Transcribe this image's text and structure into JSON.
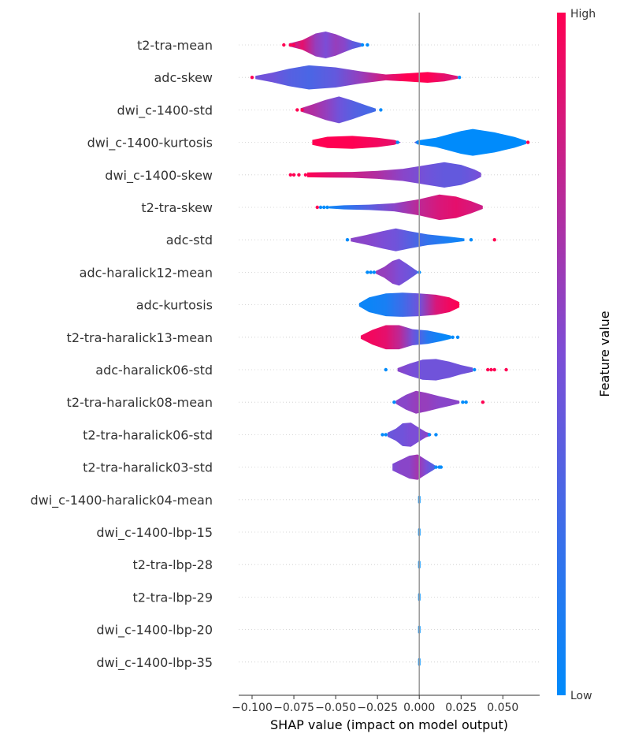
{
  "chart_data": {
    "type": "violin",
    "xlabel": "SHAP value (impact on model output)",
    "xlim": [
      -0.108,
      0.072
    ],
    "xticks": [
      -0.1,
      -0.075,
      -0.05,
      -0.025,
      0.0,
      0.025,
      0.05
    ],
    "xtick_labels": [
      "−0.100",
      "−0.075",
      "−0.050",
      "−0.025",
      "0.000",
      "0.025",
      "0.050"
    ],
    "colorbar": {
      "title": "Feature value",
      "high_label": "High",
      "low_label": "Low",
      "low_color": "#008bfb",
      "mid_color": "#7c4dd6",
      "high_color": "#ff0052"
    },
    "features": [
      {
        "name": "t2-tra-mean",
        "min": -0.082,
        "max": -0.031,
        "dots": [
          -0.081,
          -0.077,
          -0.075,
          -0.034,
          -0.031
        ],
        "shape": [
          [
            -0.078,
            0.1,
            0.7
          ],
          [
            -0.07,
            0.35,
            0.9
          ],
          [
            -0.062,
            0.85,
            0.6
          ],
          [
            -0.056,
            1.0,
            0.5
          ],
          [
            -0.05,
            0.8,
            0.6
          ],
          [
            -0.045,
            0.55,
            0.55
          ],
          [
            -0.04,
            0.3,
            0.4
          ],
          [
            -0.034,
            0.1,
            0.3
          ]
        ]
      },
      {
        "name": "adc-skew",
        "min": -0.1,
        "max": 0.024,
        "dots": [
          -0.1,
          0.024
        ],
        "shape": [
          [
            -0.098,
            0.12,
            0.45
          ],
          [
            -0.088,
            0.35,
            0.45
          ],
          [
            -0.078,
            0.65,
            0.35
          ],
          [
            -0.066,
            0.9,
            0.3
          ],
          [
            -0.05,
            0.75,
            0.4
          ],
          [
            -0.035,
            0.45,
            0.6
          ],
          [
            -0.02,
            0.22,
            0.85
          ],
          [
            -0.008,
            0.3,
            1.0
          ],
          [
            0.005,
            0.4,
            1.0
          ],
          [
            0.015,
            0.3,
            0.9
          ],
          [
            0.023,
            0.1,
            0.85
          ]
        ]
      },
      {
        "name": "dwi_c-1400-std",
        "min": -0.073,
        "max": -0.023,
        "dots": [
          -0.073,
          -0.07,
          -0.023
        ],
        "shape": [
          [
            -0.071,
            0.12,
            0.75
          ],
          [
            -0.064,
            0.4,
            0.7
          ],
          [
            -0.056,
            0.75,
            0.6
          ],
          [
            -0.048,
            1.0,
            0.45
          ],
          [
            -0.04,
            0.7,
            0.35
          ],
          [
            -0.032,
            0.35,
            0.3
          ],
          [
            -0.026,
            0.1,
            0.25
          ]
        ]
      },
      {
        "name": "dwi_c-1400-kurtosis",
        "min": -0.065,
        "max": 0.065,
        "dots": [
          -0.013,
          0.065
        ],
        "shape": [
          [
            -0.064,
            0.18,
            1.0
          ],
          [
            -0.055,
            0.42,
            1.0
          ],
          [
            -0.04,
            0.48,
            1.0
          ],
          [
            -0.025,
            0.35,
            0.95
          ],
          [
            -0.015,
            0.18,
            0.9
          ],
          [
            -0.013,
            0.1,
            0.9
          ],
          [
            -0.011,
            0.0,
            0.5
          ],
          [
            -0.003,
            0.0,
            0.5
          ],
          [
            -0.001,
            0.15,
            0.0
          ],
          [
            0.01,
            0.35,
            0.0
          ],
          [
            0.025,
            0.85,
            0.0
          ],
          [
            0.032,
            1.0,
            0.0
          ],
          [
            0.045,
            0.75,
            0.0
          ],
          [
            0.057,
            0.4,
            0.0
          ],
          [
            0.064,
            0.12,
            0.0
          ]
        ]
      },
      {
        "name": "dwi_c-1400-skew",
        "min": -0.077,
        "max": 0.037,
        "dots": [
          -0.077,
          -0.075,
          -0.072,
          -0.068
        ],
        "shape": [
          [
            -0.067,
            0.18,
            1.0
          ],
          [
            -0.055,
            0.2,
            0.9
          ],
          [
            -0.04,
            0.22,
            0.8
          ],
          [
            -0.025,
            0.3,
            0.7
          ],
          [
            -0.01,
            0.45,
            0.55
          ],
          [
            0.005,
            0.75,
            0.45
          ],
          [
            0.015,
            0.95,
            0.4
          ],
          [
            0.025,
            0.75,
            0.4
          ],
          [
            0.033,
            0.4,
            0.45
          ],
          [
            0.037,
            0.15,
            0.5
          ]
        ]
      },
      {
        "name": "t2-tra-skew",
        "min": -0.061,
        "max": 0.038,
        "dots": [
          -0.061,
          -0.059,
          -0.057,
          -0.055
        ],
        "shape": [
          [
            -0.054,
            0.08,
            0.05
          ],
          [
            -0.045,
            0.15,
            0.15
          ],
          [
            -0.03,
            0.2,
            0.35
          ],
          [
            -0.015,
            0.3,
            0.55
          ],
          [
            0.0,
            0.6,
            0.75
          ],
          [
            0.012,
            0.95,
            0.85
          ],
          [
            0.022,
            0.8,
            0.9
          ],
          [
            0.031,
            0.45,
            0.85
          ],
          [
            0.038,
            0.12,
            0.8
          ]
        ]
      },
      {
        "name": "adc-std",
        "min": -0.043,
        "max": 0.045,
        "dots": [
          -0.043,
          0.031,
          0.045
        ],
        "shape": [
          [
            -0.041,
            0.12,
            0.55
          ],
          [
            -0.032,
            0.35,
            0.55
          ],
          [
            -0.022,
            0.65,
            0.5
          ],
          [
            -0.014,
            0.85,
            0.45
          ],
          [
            -0.006,
            0.65,
            0.35
          ],
          [
            0.005,
            0.4,
            0.2
          ],
          [
            0.017,
            0.25,
            0.1
          ],
          [
            0.027,
            0.1,
            0.05
          ]
        ]
      },
      {
        "name": "adc-haralick12-mean",
        "min": -0.031,
        "max": 0.0,
        "dots": [
          -0.031,
          -0.029,
          -0.027,
          0.0
        ],
        "shape": [
          [
            -0.026,
            0.1,
            0.6
          ],
          [
            -0.021,
            0.4,
            0.6
          ],
          [
            -0.016,
            0.85,
            0.55
          ],
          [
            -0.012,
            1.0,
            0.5
          ],
          [
            -0.007,
            0.6,
            0.45
          ],
          [
            -0.003,
            0.25,
            0.4
          ],
          [
            -0.001,
            0.08,
            0.35
          ]
        ]
      },
      {
        "name": "adc-kurtosis",
        "min": -0.036,
        "max": 0.025,
        "dots": [],
        "shape": [
          [
            -0.036,
            0.12,
            0.05
          ],
          [
            -0.03,
            0.55,
            0.05
          ],
          [
            -0.02,
            0.85,
            0.1
          ],
          [
            -0.01,
            0.9,
            0.25
          ],
          [
            0.0,
            0.85,
            0.45
          ],
          [
            0.01,
            0.75,
            0.85
          ],
          [
            0.018,
            0.55,
            0.95
          ],
          [
            0.024,
            0.2,
            1.0
          ]
        ]
      },
      {
        "name": "t2-tra-haralick13-mean",
        "min": -0.036,
        "max": 0.023,
        "dots": [
          0.02,
          0.023
        ],
        "shape": [
          [
            -0.035,
            0.12,
            0.95
          ],
          [
            -0.028,
            0.55,
            0.95
          ],
          [
            -0.02,
            0.9,
            0.9
          ],
          [
            -0.012,
            0.9,
            0.75
          ],
          [
            -0.004,
            0.6,
            0.45
          ],
          [
            0.005,
            0.5,
            0.15
          ],
          [
            0.013,
            0.3,
            0.05
          ],
          [
            0.019,
            0.12,
            0.0
          ]
        ]
      },
      {
        "name": "adc-haralick06-std",
        "min": -0.02,
        "max": 0.052,
        "dots": [
          -0.02,
          0.033,
          0.041,
          0.043,
          0.045,
          0.052
        ],
        "shape": [
          [
            -0.013,
            0.12,
            0.55
          ],
          [
            -0.006,
            0.45,
            0.5
          ],
          [
            0.002,
            0.75,
            0.45
          ],
          [
            0.01,
            0.8,
            0.45
          ],
          [
            0.018,
            0.6,
            0.45
          ],
          [
            0.025,
            0.35,
            0.45
          ],
          [
            0.032,
            0.15,
            0.45
          ]
        ]
      },
      {
        "name": "t2-tra-haralick08-mean",
        "min": -0.015,
        "max": 0.038,
        "dots": [
          -0.015,
          0.026,
          0.028,
          0.038
        ],
        "shape": [
          [
            -0.014,
            0.12,
            0.55
          ],
          [
            -0.008,
            0.55,
            0.55
          ],
          [
            -0.002,
            0.85,
            0.6
          ],
          [
            0.004,
            0.7,
            0.6
          ],
          [
            0.012,
            0.45,
            0.55
          ],
          [
            0.019,
            0.25,
            0.55
          ],
          [
            0.024,
            0.1,
            0.55
          ]
        ]
      },
      {
        "name": "t2-tra-haralick06-std",
        "min": -0.022,
        "max": 0.01,
        "dots": [
          -0.022,
          -0.02,
          0.006,
          0.01
        ],
        "shape": [
          [
            -0.019,
            0.15,
            0.4
          ],
          [
            -0.014,
            0.45,
            0.45
          ],
          [
            -0.01,
            0.85,
            0.45
          ],
          [
            -0.005,
            0.9,
            0.5
          ],
          [
            0.0,
            0.5,
            0.5
          ],
          [
            0.004,
            0.2,
            0.55
          ],
          [
            0.007,
            0.08,
            0.55
          ]
        ]
      },
      {
        "name": "t2-tra-haralick03-std",
        "min": -0.017,
        "max": 0.013,
        "dots": [
          0.01,
          0.012,
          0.013
        ],
        "shape": [
          [
            -0.016,
            0.25,
            0.5
          ],
          [
            -0.011,
            0.55,
            0.55
          ],
          [
            -0.006,
            0.85,
            0.55
          ],
          [
            -0.001,
            0.95,
            0.65
          ],
          [
            0.004,
            0.55,
            0.5
          ],
          [
            0.008,
            0.25,
            0.35
          ],
          [
            0.01,
            0.08,
            0.3
          ]
        ]
      },
      {
        "name": "dwi_c-1400-haralick04-mean",
        "min": 0.0,
        "max": 0.0,
        "dots": [],
        "shape": []
      },
      {
        "name": "dwi_c-1400-lbp-15",
        "min": 0.0,
        "max": 0.0,
        "dots": [],
        "shape": []
      },
      {
        "name": "t2-tra-lbp-28",
        "min": 0.0,
        "max": 0.0,
        "dots": [],
        "shape": []
      },
      {
        "name": "t2-tra-lbp-29",
        "min": 0.0,
        "max": 0.0,
        "dots": [],
        "shape": []
      },
      {
        "name": "dwi_c-1400-lbp-20",
        "min": 0.0,
        "max": 0.0,
        "dots": [],
        "shape": []
      },
      {
        "name": "dwi_c-1400-lbp-35",
        "min": 0.0,
        "max": 0.0,
        "dots": [],
        "shape": []
      }
    ]
  }
}
